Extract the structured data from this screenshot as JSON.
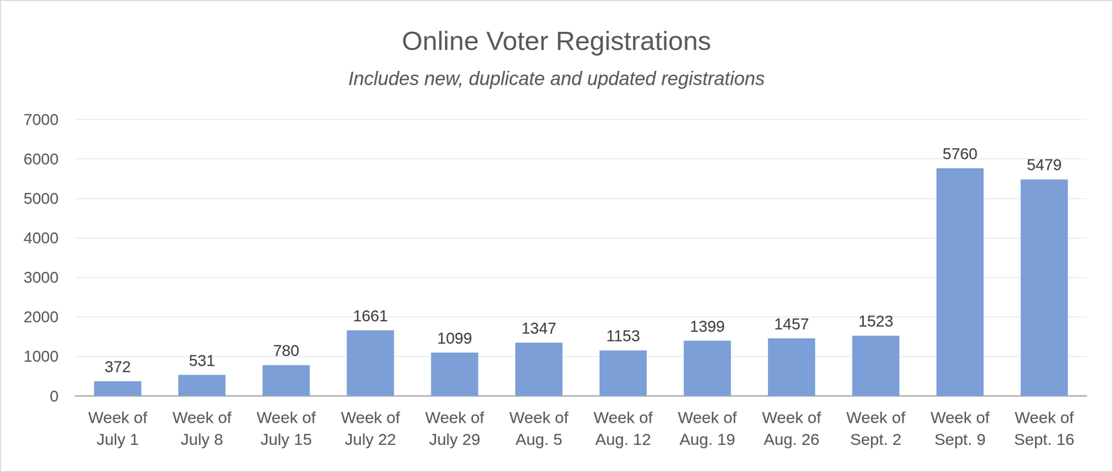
{
  "chart_data": {
    "type": "bar",
    "title": "Online Voter Registrations",
    "subtitle": "Includes new, duplicate and updated registrations",
    "categories": [
      "Week of July 1",
      "Week of July 8",
      "Week of July 15",
      "Week of July 22",
      "Week of July 29",
      "Week of Aug. 5",
      "Week of Aug. 12",
      "Week of Aug. 19",
      "Week of Aug. 26",
      "Week of Sept. 2",
      "Week of Sept. 9",
      "Week of Sept. 16"
    ],
    "values": [
      372,
      531,
      780,
      1661,
      1099,
      1347,
      1153,
      1399,
      1457,
      1523,
      5760,
      5479
    ],
    "color": "#7b9fd6",
    "ylim": [
      0,
      7000
    ],
    "yticks": [
      0,
      1000,
      2000,
      3000,
      4000,
      5000,
      6000,
      7000
    ],
    "grid": true,
    "data_labels": true
  }
}
